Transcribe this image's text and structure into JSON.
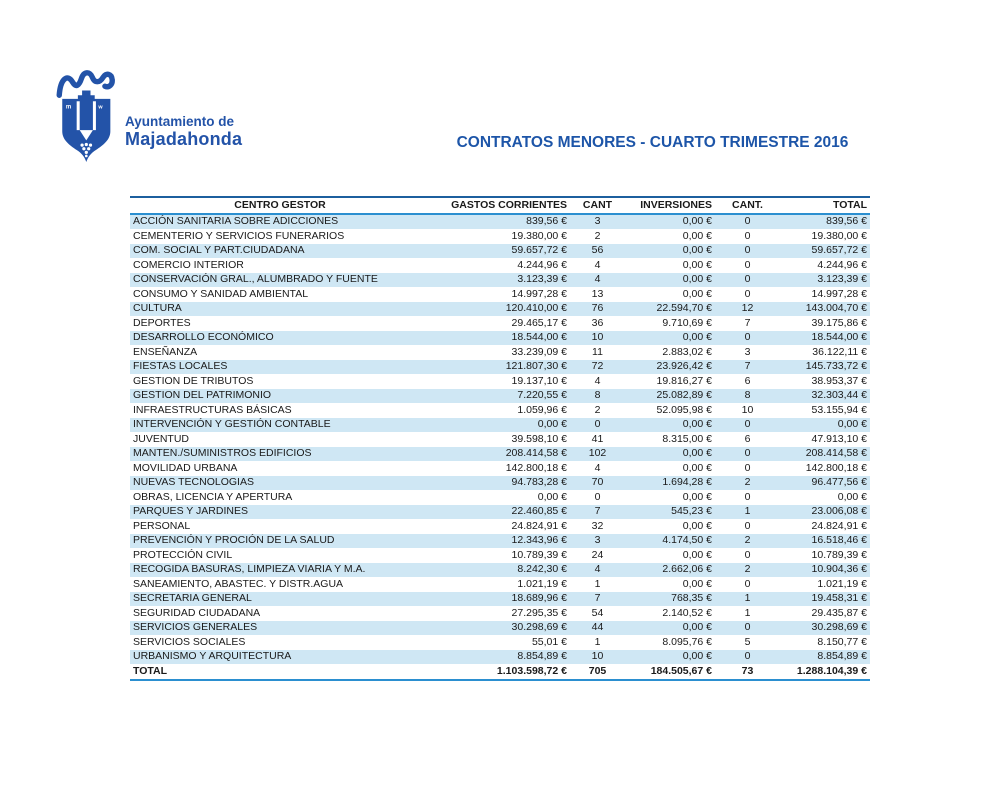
{
  "logo": {
    "org_line1": "Ayuntamiento de",
    "org_line2": "Majadahonda"
  },
  "title": "CONTRATOS MENORES - CUARTO TRIMESTRE 2016",
  "colors": {
    "logo_blue": "#2353a8",
    "title_blue": "#1d55a8",
    "stripe_blue": "#cfe7f4",
    "rule_blue": "#2b8fd0"
  },
  "table": {
    "columns": [
      "CENTRO GESTOR",
      "GASTOS CORRIENTES",
      "CANT",
      "INVERSIONES",
      "CANT.",
      "TOTAL"
    ],
    "rows": [
      [
        "ACCIÓN SANITARIA SOBRE ADICCIONES",
        "839,56 €",
        "3",
        "0,00 €",
        "0",
        "839,56 €"
      ],
      [
        "CEMENTERIO Y SERVICIOS FUNERARIOS",
        "19.380,00 €",
        "2",
        "0,00 €",
        "0",
        "19.380,00 €"
      ],
      [
        "COM. SOCIAL Y PART.CIUDADANA",
        "59.657,72 €",
        "56",
        "0,00 €",
        "0",
        "59.657,72 €"
      ],
      [
        "COMERCIO INTERIOR",
        "4.244,96 €",
        "4",
        "0,00 €",
        "0",
        "4.244,96 €"
      ],
      [
        "CONSERVACIÓN GRAL., ALUMBRADO Y FUENTE",
        "3.123,39 €",
        "4",
        "0,00 €",
        "0",
        "3.123,39 €"
      ],
      [
        "CONSUMO Y SANIDAD AMBIENTAL",
        "14.997,28 €",
        "13",
        "0,00 €",
        "0",
        "14.997,28 €"
      ],
      [
        "CULTURA",
        "120.410,00 €",
        "76",
        "22.594,70 €",
        "12",
        "143.004,70 €"
      ],
      [
        "DEPORTES",
        "29.465,17 €",
        "36",
        "9.710,69 €",
        "7",
        "39.175,86 €"
      ],
      [
        "DESARROLLO ECONÓMICO",
        "18.544,00 €",
        "10",
        "0,00 €",
        "0",
        "18.544,00 €"
      ],
      [
        "ENSEÑANZA",
        "33.239,09 €",
        "11",
        "2.883,02 €",
        "3",
        "36.122,11 €"
      ],
      [
        "FIESTAS LOCALES",
        "121.807,30 €",
        "72",
        "23.926,42 €",
        "7",
        "145.733,72 €"
      ],
      [
        "GESTION DE TRIBUTOS",
        "19.137,10 €",
        "4",
        "19.816,27 €",
        "6",
        "38.953,37 €"
      ],
      [
        "GESTION DEL PATRIMONIO",
        "7.220,55 €",
        "8",
        "25.082,89 €",
        "8",
        "32.303,44 €"
      ],
      [
        "INFRAESTRUCTURAS BÁSICAS",
        "1.059,96 €",
        "2",
        "52.095,98 €",
        "10",
        "53.155,94 €"
      ],
      [
        "INTERVENCIÓN Y GESTIÓN CONTABLE",
        "0,00 €",
        "0",
        "0,00 €",
        "0",
        "0,00 €"
      ],
      [
        "JUVENTUD",
        "39.598,10 €",
        "41",
        "8.315,00 €",
        "6",
        "47.913,10 €"
      ],
      [
        "MANTEN./SUMINISTROS EDIFICIOS",
        "208.414,58 €",
        "102",
        "0,00 €",
        "0",
        "208.414,58 €"
      ],
      [
        "MOVILIDAD URBANA",
        "142.800,18 €",
        "4",
        "0,00 €",
        "0",
        "142.800,18 €"
      ],
      [
        "NUEVAS TECNOLOGIAS",
        "94.783,28 €",
        "70",
        "1.694,28 €",
        "2",
        "96.477,56 €"
      ],
      [
        "OBRAS, LICENCIA Y APERTURA",
        "0,00 €",
        "0",
        "0,00 €",
        "0",
        "0,00 €"
      ],
      [
        "PARQUES Y JARDINES",
        "22.460,85 €",
        "7",
        "545,23 €",
        "1",
        "23.006,08 €"
      ],
      [
        "PERSONAL",
        "24.824,91 €",
        "32",
        "0,00 €",
        "0",
        "24.824,91 €"
      ],
      [
        "PREVENCIÓN Y PROCIÓN DE LA SALUD",
        "12.343,96 €",
        "3",
        "4.174,50 €",
        "2",
        "16.518,46 €"
      ],
      [
        "PROTECCIÓN CIVIL",
        "10.789,39 €",
        "24",
        "0,00 €",
        "0",
        "10.789,39 €"
      ],
      [
        "RECOGIDA BASURAS, LIMPIEZA VIARIA Y M.A.",
        "8.242,30 €",
        "4",
        "2.662,06 €",
        "2",
        "10.904,36 €"
      ],
      [
        "SANEAMIENTO, ABASTEC. Y DISTR.AGUA",
        "1.021,19 €",
        "1",
        "0,00 €",
        "0",
        "1.021,19 €"
      ],
      [
        "SECRETARIA GENERAL",
        "18.689,96 €",
        "7",
        "768,35 €",
        "1",
        "19.458,31 €"
      ],
      [
        "SEGURIDAD CIUDADANA",
        "27.295,35 €",
        "54",
        "2.140,52 €",
        "1",
        "29.435,87 €"
      ],
      [
        "SERVICIOS GENERALES",
        "30.298,69 €",
        "44",
        "0,00 €",
        "0",
        "30.298,69 €"
      ],
      [
        "SERVICIOS SOCIALES",
        "55,01 €",
        "1",
        "8.095,76 €",
        "5",
        "8.150,77 €"
      ],
      [
        "URBANISMO Y ARQUITECTURA",
        "8.854,89 €",
        "10",
        "0,00 €",
        "0",
        "8.854,89 €"
      ]
    ],
    "total_row": [
      "TOTAL",
      "1.103.598,72 €",
      "705",
      "184.505,67 €",
      "73",
      "1.288.104,39 €"
    ]
  }
}
